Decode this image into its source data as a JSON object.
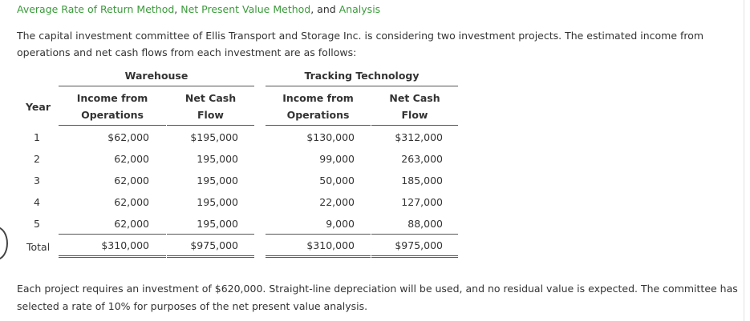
{
  "title": {
    "part1": "Average Rate of Return Method",
    "sep1": ", ",
    "part2": "Net Present Value Method",
    "sep2": ", and ",
    "part3": "Analysis"
  },
  "intro": "The capital investment committee of Ellis Transport and Storage Inc. is considering two investment projects. The estimated income from operations and net cash flows from each investment are as follows:",
  "table": {
    "groups": {
      "warehouse": "Warehouse",
      "tracking": "Tracking Technology"
    },
    "year_label": "Year",
    "col_income_line1": "Income from",
    "col_income_line2": "Operations",
    "col_cash_line1": "Net Cash",
    "col_cash_line2": "Flow",
    "rows": [
      {
        "year": "1",
        "w_income": "$62,000",
        "w_cash": "$195,000",
        "t_income": "$130,000",
        "t_cash": "$312,000"
      },
      {
        "year": "2",
        "w_income": "62,000",
        "w_cash": "195,000",
        "t_income": "99,000",
        "t_cash": "263,000"
      },
      {
        "year": "3",
        "w_income": "62,000",
        "w_cash": "195,000",
        "t_income": "50,000",
        "t_cash": "185,000"
      },
      {
        "year": "4",
        "w_income": "62,000",
        "w_cash": "195,000",
        "t_income": "22,000",
        "t_cash": "127,000"
      },
      {
        "year": "5",
        "w_income": "62,000",
        "w_cash": "195,000",
        "t_income": "9,000",
        "t_cash": "88,000"
      }
    ],
    "total": {
      "label": "Total",
      "w_income": "$310,000",
      "w_cash": "$975,000",
      "t_income": "$310,000",
      "t_cash": "$975,000"
    }
  },
  "outro": "Each project requires an investment of $620,000. Straight-line depreciation will be used, and no residual value is expected. The committee has selected a rate of 10% for purposes of the net present value analysis."
}
